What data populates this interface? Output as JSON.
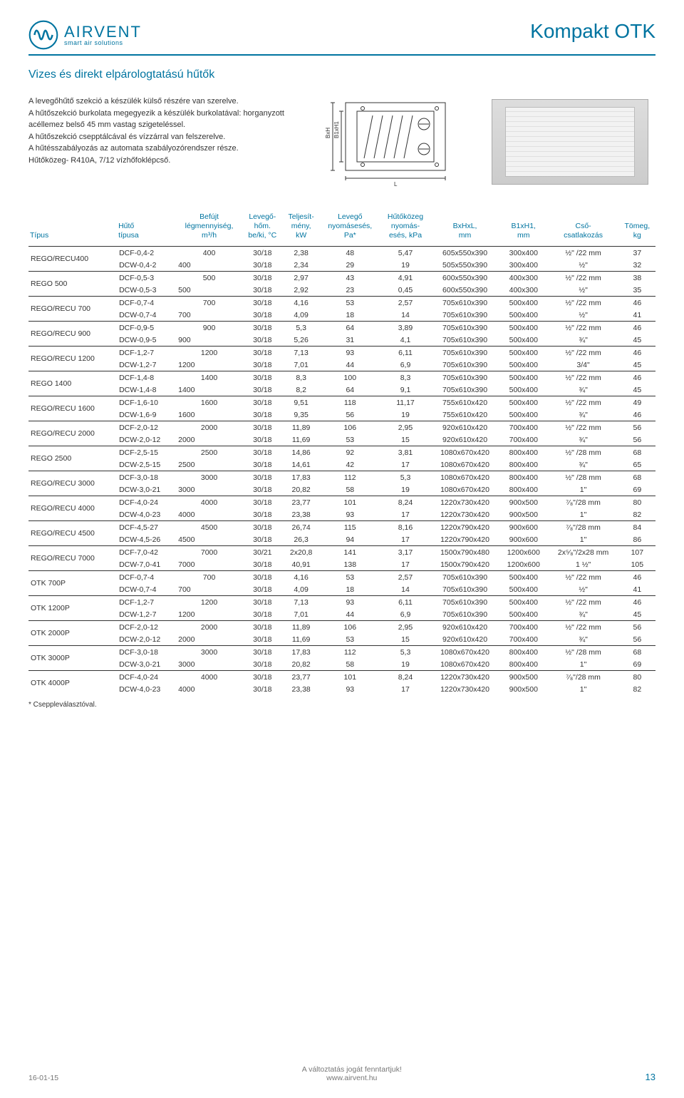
{
  "brand": {
    "name": "AIRVENT",
    "tagline": "smart air solutions"
  },
  "kompakt": "Kompakt OTK",
  "section_title": "Vizes és direkt elpárologtatású hűtők",
  "intro": "A levegőhűtő szekció a készülék külső részére van szerelve.\nA hűtőszekció burkolata megegyezik a készülék burkolatával: horganyzott acéllemez belső 45 mm vastag szigeteléssel.\nA hűtőszekció csepptálcával és vízzárral van felszerelve.\nA hűtésszabályozás az automata szabályozórendszer része.\nHűtőközeg- R410A, 7/12 vízhőfoklépcső.",
  "diagram_labels": {
    "bh": "BxH",
    "b1h1": "B1xH1",
    "l": "L"
  },
  "table": {
    "headers": [
      "Típus",
      "Hűtő\ntípusa",
      "Befújt\nlégmennyiség,\nm³/h",
      "Levegő-\nhőm.\nbe/ki, °C",
      "Teljesít-\nmény,\nkW",
      "Levegő\nnyomásesés,\nPa*",
      "Hűtőközeg\nnyomás-\nesés, kPa",
      "BxHxL,\nmm",
      "B1xH1,\nmm",
      "Cső-\ncsatlakozás",
      "Tömeg,\nkg"
    ],
    "groups": [
      {
        "type": "REGO/RECU400",
        "rows": [
          [
            "DCF-0,4-2",
            "400",
            "30/18",
            "2,38",
            "48",
            "5,47",
            "605x550x390",
            "300x400",
            "½\" /22 mm",
            "37"
          ],
          [
            "DCW-0,4-2",
            "400",
            "30/18",
            "2,34",
            "29",
            "19",
            "505x550x390",
            "300x400",
            "½\"",
            "32"
          ]
        ]
      },
      {
        "type": "REGO 500",
        "rows": [
          [
            "DCF-0,5-3",
            "500",
            "30/18",
            "2,97",
            "43",
            "4,91",
            "600x550x390",
            "400x300",
            "½\" /22 mm",
            "38"
          ],
          [
            "DCW-0,5-3",
            "500",
            "30/18",
            "2,92",
            "23",
            "0,45",
            "600x550x390",
            "400x300",
            "½\"",
            "35"
          ]
        ]
      },
      {
        "type": "REGO/RECU 700",
        "rows": [
          [
            "DCF-0,7-4",
            "700",
            "30/18",
            "4,16",
            "53",
            "2,57",
            "705x610x390",
            "500x400",
            "½\" /22 mm",
            "46"
          ],
          [
            "DCW-0,7-4",
            "700",
            "30/18",
            "4,09",
            "18",
            "14",
            "705x610x390",
            "500x400",
            "½\"",
            "41"
          ]
        ]
      },
      {
        "type": "REGO/RECU 900",
        "rows": [
          [
            "DCF-0,9-5",
            "900",
            "30/18",
            "5,3",
            "64",
            "3,89",
            "705x610x390",
            "500x400",
            "½\" /22 mm",
            "46"
          ],
          [
            "DCW-0,9-5",
            "900",
            "30/18",
            "5,26",
            "31",
            "4,1",
            "705x610x390",
            "500x400",
            "¾\"",
            "45"
          ]
        ]
      },
      {
        "type": "REGO/RECU 1200",
        "rows": [
          [
            "DCF-1,2-7",
            "1200",
            "30/18",
            "7,13",
            "93",
            "6,11",
            "705x610x390",
            "500x400",
            "½\" /22 mm",
            "46"
          ],
          [
            "DCW-1,2-7",
            "1200",
            "30/18",
            "7,01",
            "44",
            "6,9",
            "705x610x390",
            "500x400",
            "3/4\"",
            "45"
          ]
        ]
      },
      {
        "type": "REGO 1400",
        "rows": [
          [
            "DCF-1,4-8",
            "1400",
            "30/18",
            "8,3",
            "100",
            "8,3",
            "705x610x390",
            "500x400",
            "½\" /22 mm",
            "46"
          ],
          [
            "DCW-1,4-8",
            "1400",
            "30/18",
            "8,2",
            "64",
            "9,1",
            "705x610x390",
            "500x400",
            "¾\"",
            "45"
          ]
        ]
      },
      {
        "type": "REGO/RECU 1600",
        "rows": [
          [
            "DCF-1,6-10",
            "1600",
            "30/18",
            "9,51",
            "118",
            "11,17",
            "755x610x420",
            "500x400",
            "½\" /22 mm",
            "49"
          ],
          [
            "DCW-1,6-9",
            "1600",
            "30/18",
            "9,35",
            "56",
            "19",
            "755x610x420",
            "500x400",
            "¾\"",
            "46"
          ]
        ]
      },
      {
        "type": "REGO/RECU 2000",
        "rows": [
          [
            "DCF-2,0-12",
            "2000",
            "30/18",
            "11,89",
            "106",
            "2,95",
            "920x610x420",
            "700x400",
            "½\" /22 mm",
            "56"
          ],
          [
            "DCW-2,0-12",
            "2000",
            "30/18",
            "11,69",
            "53",
            "15",
            "920x610x420",
            "700x400",
            "¾\"",
            "56"
          ]
        ]
      },
      {
        "type": "REGO 2500",
        "rows": [
          [
            "DCF-2,5-15",
            "2500",
            "30/18",
            "14,86",
            "92",
            "3,81",
            "1080x670x420",
            "800x400",
            "½\" /28 mm",
            "68"
          ],
          [
            "DCW-2,5-15",
            "2500",
            "30/18",
            "14,61",
            "42",
            "17",
            "1080x670x420",
            "800x400",
            "¾\"",
            "65"
          ]
        ]
      },
      {
        "type": "REGO/RECU 3000",
        "rows": [
          [
            "DCF-3,0-18",
            "3000",
            "30/18",
            "17,83",
            "112",
            "5,3",
            "1080x670x420",
            "800x400",
            "½\" /28 mm",
            "68"
          ],
          [
            "DCW-3,0-21",
            "3000",
            "30/18",
            "20,82",
            "58",
            "19",
            "1080x670x420",
            "800x400",
            "1\"",
            "69"
          ]
        ]
      },
      {
        "type": "REGO/RECU 4000",
        "rows": [
          [
            "DCF-4,0-24",
            "4000",
            "30/18",
            "23,77",
            "101",
            "8,24",
            "1220x730x420",
            "900x500",
            "⁷⁄₈\"/28 mm",
            "80"
          ],
          [
            "DCW-4,0-23",
            "4000",
            "30/18",
            "23,38",
            "93",
            "17",
            "1220x730x420",
            "900x500",
            "1\"",
            "82"
          ]
        ]
      },
      {
        "type": "REGO/RECU 4500",
        "rows": [
          [
            "DCF-4,5-27",
            "4500",
            "30/18",
            "26,74",
            "115",
            "8,16",
            "1220x790x420",
            "900x600",
            "⁷⁄₈\"/28 mm",
            "84"
          ],
          [
            "DCW-4,5-26",
            "4500",
            "30/18",
            "26,3",
            "94",
            "17",
            "1220x790x420",
            "900x600",
            "1\"",
            "86"
          ]
        ]
      },
      {
        "type": "REGO/RECU 7000",
        "rows": [
          [
            "DCF-7,0-42",
            "7000",
            "30/21",
            "2x20,8",
            "141",
            "3,17",
            "1500x790x480",
            "1200x600",
            "2x⁵⁄₈\"/2x28 mm",
            "107"
          ],
          [
            "DCW-7,0-41",
            "7000",
            "30/18",
            "40,91",
            "138",
            "17",
            "1500x790x420",
            "1200x600",
            "1 ½\"",
            "105"
          ]
        ]
      },
      {
        "type": "OTK 700P",
        "rows": [
          [
            "DCF-0,7-4",
            "700",
            "30/18",
            "4,16",
            "53",
            "2,57",
            "705x610x390",
            "500x400",
            "½\" /22 mm",
            "46"
          ],
          [
            "DCW-0,7-4",
            "700",
            "30/18",
            "4,09",
            "18",
            "14",
            "705x610x390",
            "500x400",
            "½\"",
            "41"
          ]
        ]
      },
      {
        "type": "OTK 1200P",
        "rows": [
          [
            "DCF-1,2-7",
            "1200",
            "30/18",
            "7,13",
            "93",
            "6,11",
            "705x610x390",
            "500x400",
            "½\" /22 mm",
            "46"
          ],
          [
            "DCW-1,2-7",
            "1200",
            "30/18",
            "7,01",
            "44",
            "6,9",
            "705x610x390",
            "500x400",
            "¾\"",
            "45"
          ]
        ]
      },
      {
        "type": "OTK 2000P",
        "rows": [
          [
            "DCF-2,0-12",
            "2000",
            "30/18",
            "11,89",
            "106",
            "2,95",
            "920x610x420",
            "700x400",
            "½\" /22 mm",
            "56"
          ],
          [
            "DCW-2,0-12",
            "2000",
            "30/18",
            "11,69",
            "53",
            "15",
            "920x610x420",
            "700x400",
            "¾\"",
            "56"
          ]
        ]
      },
      {
        "type": "OTK 3000P",
        "rows": [
          [
            "DCF-3,0-18",
            "3000",
            "30/18",
            "17,83",
            "112",
            "5,3",
            "1080x670x420",
            "800x400",
            "½\" /28 mm",
            "68"
          ],
          [
            "DCW-3,0-21",
            "3000",
            "30/18",
            "20,82",
            "58",
            "19",
            "1080x670x420",
            "800x400",
            "1\"",
            "69"
          ]
        ]
      },
      {
        "type": "OTK 4000P",
        "rows": [
          [
            "DCF-4,0-24",
            "4000",
            "30/18",
            "23,77",
            "101",
            "8,24",
            "1220x730x420",
            "900x500",
            "⁷⁄₈\"/28 mm",
            "80"
          ],
          [
            "DCW-4,0-23",
            "4000",
            "30/18",
            "23,38",
            "93",
            "17",
            "1220x730x420",
            "900x500",
            "1\"",
            "82"
          ]
        ]
      }
    ],
    "footnote": "* Cseppleválasztóval."
  },
  "footer": {
    "left": "16-01-15",
    "center1": "A változtatás jogát fenntartjuk!",
    "center2": "www.airvent.hu",
    "page": "13"
  }
}
